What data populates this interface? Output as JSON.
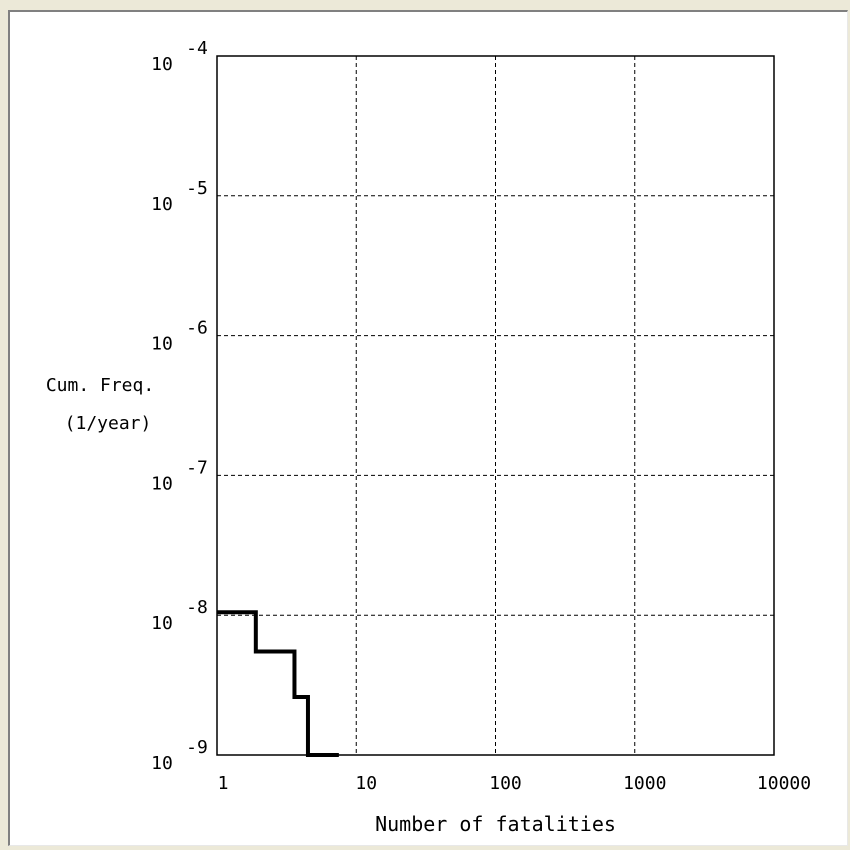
{
  "chart_data": {
    "type": "line",
    "title": "",
    "xlabel": "Number of fatalities",
    "ylabel_line1": "Cum. Freq.",
    "ylabel_line2": "(1/year)",
    "x_scale": "log",
    "y_scale": "log",
    "xlim": [
      1,
      10000
    ],
    "ylim": [
      1e-09,
      0.0001
    ],
    "x_ticks": [
      {
        "value": 1,
        "label": "1"
      },
      {
        "value": 10,
        "label": "10"
      },
      {
        "value": 100,
        "label": "100"
      },
      {
        "value": 1000,
        "label": "1000"
      },
      {
        "value": 10000,
        "label": "10000"
      }
    ],
    "y_ticks": [
      {
        "value": 0.0001,
        "base": "10",
        "exp": "-4"
      },
      {
        "value": 1e-05,
        "base": "10",
        "exp": "-5"
      },
      {
        "value": 1e-06,
        "base": "10",
        "exp": "-6"
      },
      {
        "value": 1e-07,
        "base": "10",
        "exp": "-7"
      },
      {
        "value": 1e-08,
        "base": "10",
        "exp": "-8"
      },
      {
        "value": 1e-09,
        "base": "10",
        "exp": "-9"
      }
    ],
    "grid": true,
    "grid_style": "dashed",
    "series": [
      {
        "step": "post",
        "x": [
          1,
          1.9,
          3.6,
          4.5,
          7.5
        ],
        "y": [
          1.05e-08,
          5.5e-09,
          2.6e-09,
          1e-09,
          1e-09
        ],
        "color": "#000000"
      }
    ]
  }
}
